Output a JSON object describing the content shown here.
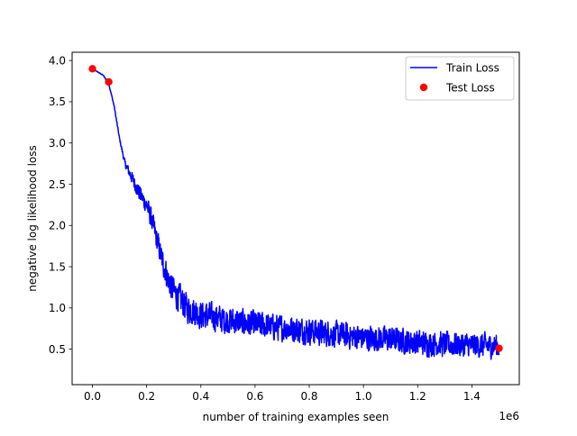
{
  "chart_data": {
    "type": "line",
    "xlabel": "number of training examples seen",
    "ylabel": "negative log likelihood loss",
    "x_offset_label": "1e6",
    "xlim": [
      -0.075,
      1.575
    ],
    "ylim": [
      0.07,
      4.1
    ],
    "x_ticks": [
      0.0,
      0.2,
      0.4,
      0.6,
      0.8,
      1.0,
      1.2,
      1.4
    ],
    "x_tick_labels": [
      "0.0",
      "0.2",
      "0.4",
      "0.6",
      "0.8",
      "1.0",
      "1.2",
      "1.4"
    ],
    "y_ticks": [
      0.5,
      1.0,
      1.5,
      2.0,
      2.5,
      3.0,
      3.5,
      4.0
    ],
    "y_tick_labels": [
      "0.5",
      "1.0",
      "1.5",
      "2.0",
      "2.5",
      "3.0",
      "3.5",
      "4.0"
    ],
    "grid": false,
    "legend_position": "top-right",
    "series": [
      {
        "name": "Train Loss",
        "kind": "line",
        "color": "#0000ff",
        "trend_x": [
          0.0,
          0.02,
          0.04,
          0.06,
          0.08,
          0.1,
          0.12,
          0.15,
          0.18,
          0.2,
          0.22,
          0.24,
          0.26,
          0.28,
          0.3,
          0.35,
          0.4,
          0.5,
          0.6,
          0.7,
          0.8,
          0.9,
          1.0,
          1.1,
          1.2,
          1.3,
          1.4,
          1.5
        ],
        "trend_y": [
          3.9,
          3.86,
          3.82,
          3.72,
          3.45,
          3.05,
          2.75,
          2.55,
          2.35,
          2.25,
          2.05,
          1.8,
          1.55,
          1.35,
          1.2,
          1.0,
          0.92,
          0.85,
          0.8,
          0.76,
          0.72,
          0.68,
          0.64,
          0.62,
          0.58,
          0.56,
          0.55,
          0.54
        ],
        "noise_amplitude_x": [
          0.0,
          0.1,
          0.15,
          0.3,
          0.5,
          1.5
        ],
        "noise_amplitude": [
          0.0,
          0.02,
          0.1,
          0.22,
          0.2,
          0.18
        ]
      },
      {
        "name": "Test Loss",
        "kind": "scatter",
        "color": "#ff0000",
        "x": [
          0.0,
          0.06,
          1.5
        ],
        "y": [
          3.9,
          3.74,
          0.51
        ]
      }
    ]
  }
}
